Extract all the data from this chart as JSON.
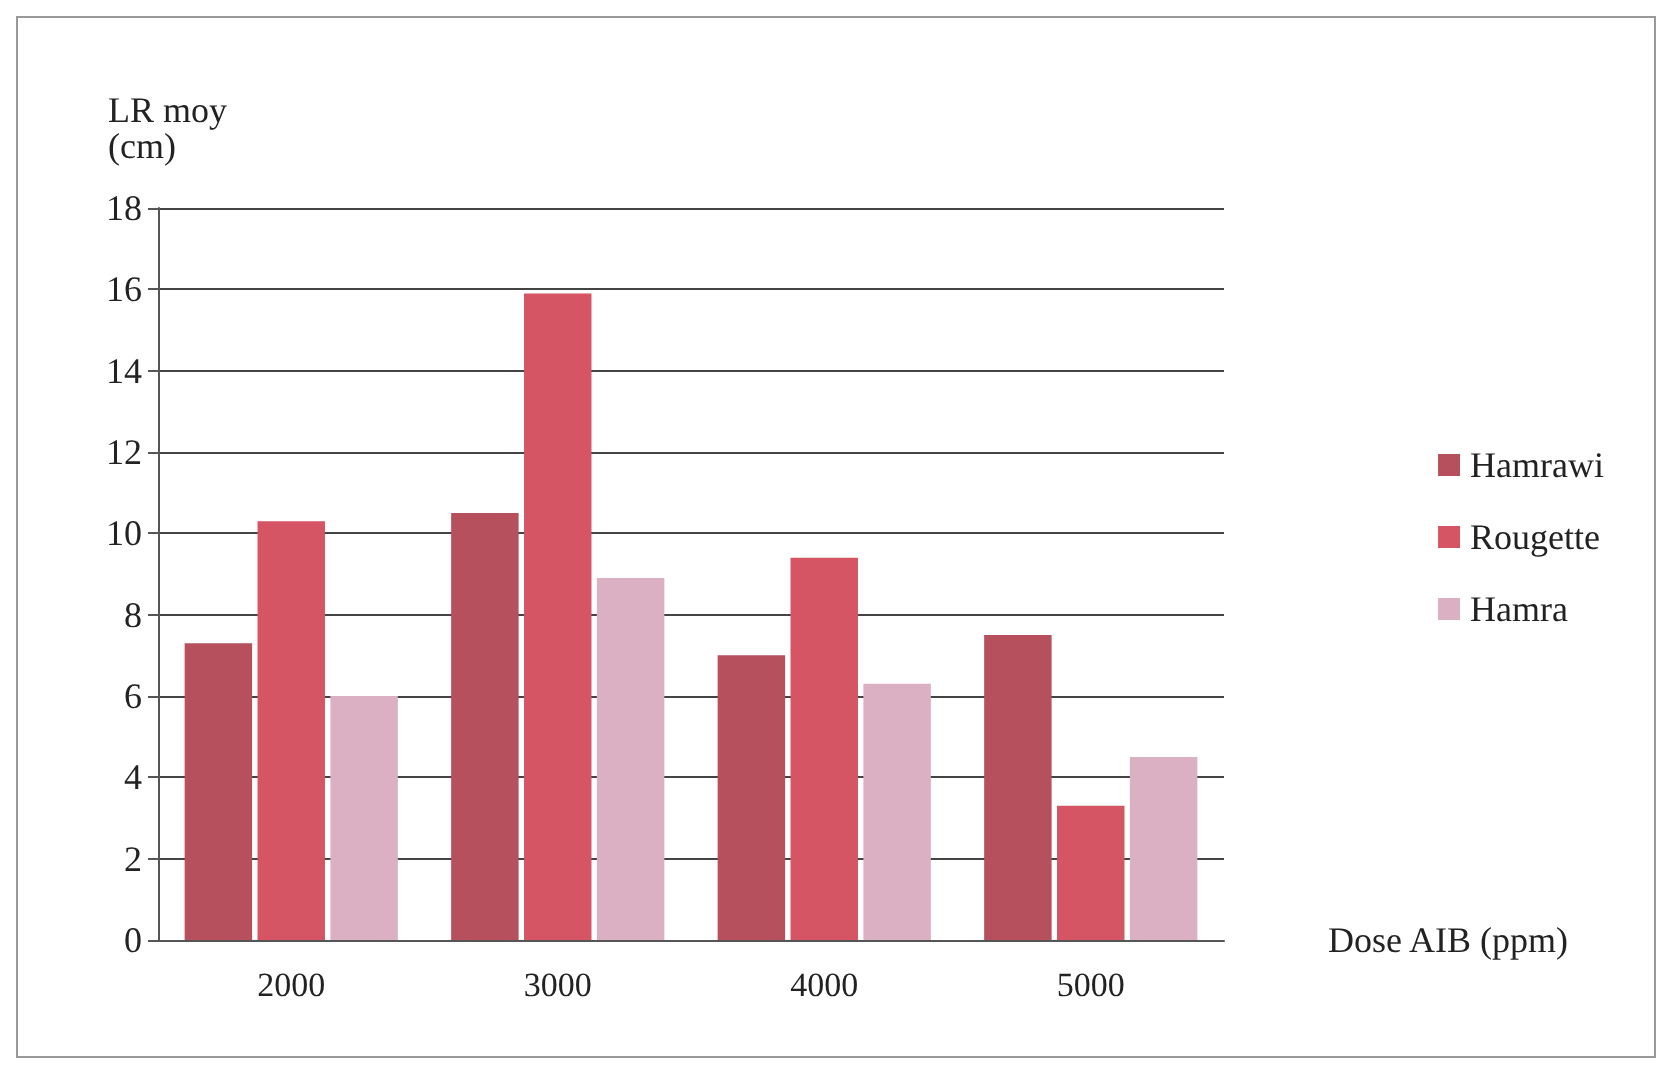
{
  "chart_data": {
    "type": "bar",
    "ylabel": "LR moy\n(cm)",
    "xlabel": "Dose AIB (ppm)",
    "categories": [
      "2000",
      "3000",
      "4000",
      "5000"
    ],
    "series": [
      {
        "name": "Hamrawi",
        "color": "#b5505c",
        "values": [
          7.3,
          10.5,
          7.0,
          7.5
        ]
      },
      {
        "name": "Rougette",
        "color": "#d65565",
        "values": [
          10.3,
          15.9,
          9.4,
          3.3
        ]
      },
      {
        "name": "Hamra",
        "color": "#dbb0c2",
        "values": [
          6.0,
          8.9,
          6.3,
          4.5
        ]
      }
    ],
    "ylim": [
      0,
      18
    ],
    "yticks": [
      0,
      2,
      4,
      6,
      8,
      10,
      12,
      14,
      16,
      18
    ],
    "grid": "y",
    "legend": "right"
  }
}
